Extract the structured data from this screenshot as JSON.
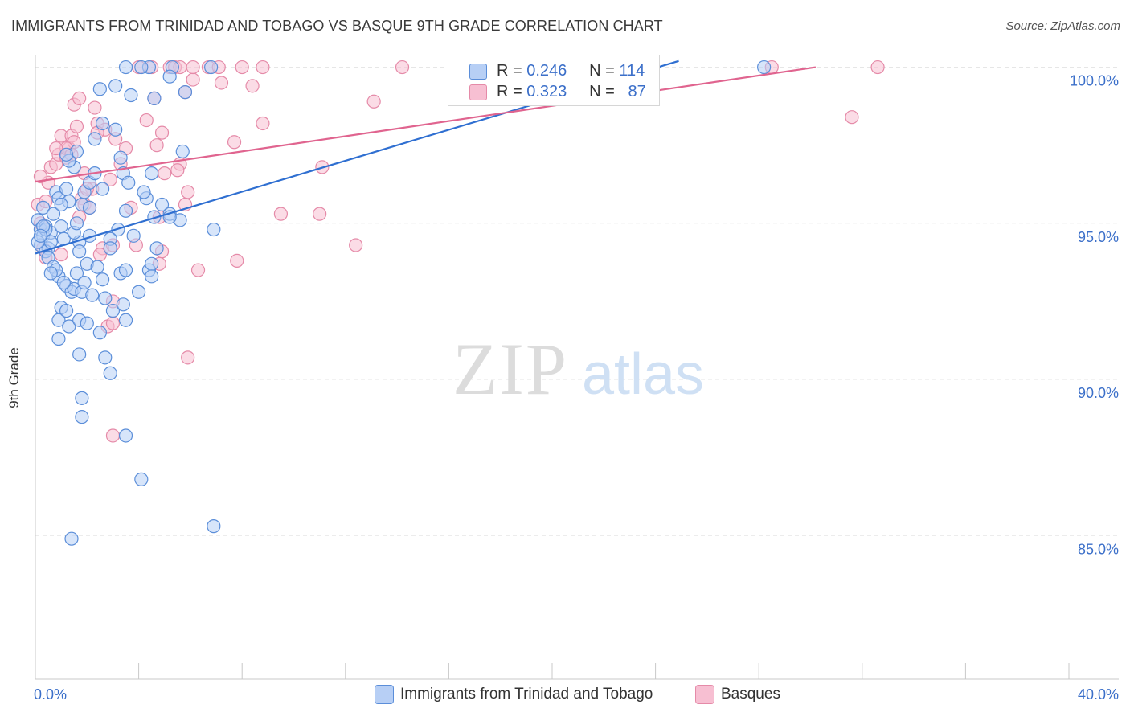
{
  "title": "IMMIGRANTS FROM TRINIDAD AND TOBAGO VS BASQUE 9TH GRADE CORRELATION CHART",
  "source": "Source: ZipAtlas.com",
  "watermark": {
    "zip": "ZIP",
    "atlas": "atlas"
  },
  "legend": {
    "r_label": "R =",
    "n_label": "N =",
    "series": [
      {
        "r": "0.246",
        "n": "114"
      },
      {
        "r": "0.323",
        "n": "87"
      }
    ]
  },
  "bottom_legend": [
    {
      "label": "Immigrants from Trinidad and Tobago"
    },
    {
      "label": "Basques"
    }
  ],
  "colors": {
    "blue_fill": "#b7cff5",
    "blue_stroke": "#5b8ed9",
    "blue_line": "#2f6fd1",
    "pink_fill": "#f7bfd2",
    "pink_stroke": "#e58aa8",
    "pink_line": "#e0648f",
    "tick_text": "#3b6fc9",
    "grid": "#e6e6e6"
  },
  "chart_data": {
    "type": "scatter",
    "title": "IMMIGRANTS FROM TRINIDAD AND TOBAGO VS BASQUE 9TH GRADE CORRELATION CHART",
    "xlabel": "",
    "ylabel": "9th Grade",
    "xlim": [
      0,
      40
    ],
    "ylim": [
      80.4,
      100.4
    ],
    "x_tick_labels": [
      "0.0%",
      "40.0%"
    ],
    "y_ticks": [
      85,
      90,
      95,
      100
    ],
    "y_tick_labels": [
      "85.0%",
      "90.0%",
      "95.0%",
      "100.0%"
    ],
    "series": [
      {
        "name": "Immigrants from Trinidad and Tobago",
        "color": "blue",
        "trend": {
          "x": [
            0,
            24.9
          ],
          "y": [
            94.03,
            100.2
          ]
        },
        "points": [
          [
            0.1,
            95.1
          ],
          [
            0.2,
            94.8
          ],
          [
            0.3,
            94.6
          ],
          [
            0.2,
            94.3
          ],
          [
            0.4,
            94.9
          ],
          [
            0.3,
            95.5
          ],
          [
            0.5,
            94.2
          ],
          [
            0.6,
            94.7
          ],
          [
            0.4,
            94.1
          ],
          [
            0.1,
            94.4
          ],
          [
            0.7,
            95.3
          ],
          [
            0.8,
            96.0
          ],
          [
            0.9,
            95.8
          ],
          [
            1.0,
            94.9
          ],
          [
            1.1,
            94.5
          ],
          [
            0.5,
            93.9
          ],
          [
            0.7,
            93.6
          ],
          [
            0.9,
            93.3
          ],
          [
            1.2,
            93.0
          ],
          [
            1.4,
            92.8
          ],
          [
            1.0,
            92.3
          ],
          [
            0.9,
            91.9
          ],
          [
            0.9,
            91.3
          ],
          [
            1.3,
            91.7
          ],
          [
            1.2,
            92.2
          ],
          [
            1.5,
            92.9
          ],
          [
            1.6,
            93.4
          ],
          [
            1.8,
            92.8
          ],
          [
            1.9,
            93.1
          ],
          [
            2.0,
            93.7
          ],
          [
            1.7,
            94.4
          ],
          [
            1.5,
            94.7
          ],
          [
            1.6,
            95.0
          ],
          [
            1.8,
            95.6
          ],
          [
            1.3,
            95.7
          ],
          [
            1.9,
            96.0
          ],
          [
            2.1,
            96.3
          ],
          [
            2.3,
            96.6
          ],
          [
            2.6,
            96.1
          ],
          [
            1.5,
            96.8
          ],
          [
            1.6,
            97.3
          ],
          [
            1.3,
            97.0
          ],
          [
            1.2,
            97.2
          ],
          [
            2.3,
            97.7
          ],
          [
            2.6,
            98.2
          ],
          [
            3.1,
            98.0
          ],
          [
            3.3,
            97.1
          ],
          [
            3.4,
            96.6
          ],
          [
            3.6,
            96.3
          ],
          [
            3.5,
            95.4
          ],
          [
            3.2,
            94.8
          ],
          [
            2.9,
            94.5
          ],
          [
            2.1,
            94.6
          ],
          [
            1.7,
            94.1
          ],
          [
            2.4,
            93.6
          ],
          [
            2.6,
            93.2
          ],
          [
            2.2,
            92.7
          ],
          [
            2.7,
            92.6
          ],
          [
            3.0,
            92.2
          ],
          [
            3.4,
            92.4
          ],
          [
            1.7,
            91.9
          ],
          [
            2.0,
            91.8
          ],
          [
            2.5,
            91.5
          ],
          [
            3.5,
            91.9
          ],
          [
            3.3,
            93.4
          ],
          [
            3.5,
            93.5
          ],
          [
            4.0,
            92.8
          ],
          [
            4.4,
            93.5
          ],
          [
            4.5,
            93.7
          ],
          [
            4.5,
            93.3
          ],
          [
            4.7,
            94.2
          ],
          [
            4.6,
            95.2
          ],
          [
            4.3,
            95.8
          ],
          [
            4.2,
            96.0
          ],
          [
            4.9,
            95.6
          ],
          [
            5.2,
            95.3
          ],
          [
            5.6,
            95.1
          ],
          [
            5.7,
            97.3
          ],
          [
            4.5,
            96.6
          ],
          [
            4.6,
            99.0
          ],
          [
            5.8,
            99.2
          ],
          [
            4.4,
            100.0
          ],
          [
            5.3,
            100.0
          ],
          [
            6.8,
            100.0
          ],
          [
            3.5,
            100.0
          ],
          [
            4.1,
            100.0
          ],
          [
            3.7,
            99.1
          ],
          [
            3.1,
            99.4
          ],
          [
            2.5,
            99.3
          ],
          [
            5.2,
            99.7
          ],
          [
            0.4,
            94.8
          ],
          [
            0.6,
            94.4
          ],
          [
            0.3,
            94.9
          ],
          [
            0.8,
            93.5
          ],
          [
            1.1,
            93.1
          ],
          [
            1.7,
            90.8
          ],
          [
            2.7,
            90.7
          ],
          [
            2.9,
            90.2
          ],
          [
            1.8,
            88.8
          ],
          [
            1.8,
            89.4
          ],
          [
            3.5,
            88.2
          ],
          [
            4.1,
            86.8
          ],
          [
            6.9,
            85.3
          ],
          [
            1.4,
            84.9
          ],
          [
            5.2,
            95.2
          ],
          [
            6.9,
            94.8
          ],
          [
            3.8,
            94.6
          ],
          [
            2.1,
            95.5
          ],
          [
            1.0,
            95.6
          ],
          [
            0.2,
            94.6
          ],
          [
            0.6,
            93.4
          ],
          [
            2.9,
            94.2
          ],
          [
            28.2,
            100.0
          ],
          [
            1.2,
            96.1
          ]
        ]
      },
      {
        "name": "Basques",
        "color": "pink",
        "trend": {
          "x": [
            0,
            30.2
          ],
          "y": [
            96.33,
            100.0
          ]
        },
        "points": [
          [
            0.1,
            95.6
          ],
          [
            0.2,
            95.0
          ],
          [
            0.3,
            94.2
          ],
          [
            0.4,
            93.9
          ],
          [
            0.5,
            96.3
          ],
          [
            0.6,
            96.8
          ],
          [
            0.8,
            96.9
          ],
          [
            0.9,
            97.2
          ],
          [
            1.0,
            97.8
          ],
          [
            1.2,
            97.1
          ],
          [
            1.3,
            97.4
          ],
          [
            1.4,
            97.8
          ],
          [
            1.5,
            97.6
          ],
          [
            1.6,
            98.1
          ],
          [
            1.2,
            97.4
          ],
          [
            1.5,
            98.8
          ],
          [
            1.7,
            99.0
          ],
          [
            2.3,
            98.7
          ],
          [
            2.4,
            98.2
          ],
          [
            2.7,
            98.0
          ],
          [
            2.4,
            97.9
          ],
          [
            3.1,
            97.7
          ],
          [
            3.3,
            96.9
          ],
          [
            1.9,
            96.6
          ],
          [
            2.2,
            96.1
          ],
          [
            1.8,
            95.8
          ],
          [
            1.9,
            95.6
          ],
          [
            2.1,
            95.5
          ],
          [
            1.7,
            95.2
          ],
          [
            2.6,
            94.2
          ],
          [
            2.5,
            94.0
          ],
          [
            3.0,
            94.3
          ],
          [
            3.9,
            94.3
          ],
          [
            4.9,
            94.1
          ],
          [
            4.8,
            93.7
          ],
          [
            6.3,
            93.5
          ],
          [
            7.8,
            93.8
          ],
          [
            3.0,
            92.5
          ],
          [
            2.8,
            91.7
          ],
          [
            3.0,
            91.8
          ],
          [
            5.9,
            90.7
          ],
          [
            3.0,
            88.2
          ],
          [
            5.6,
            96.9
          ],
          [
            5.0,
            96.6
          ],
          [
            5.9,
            96.0
          ],
          [
            5.8,
            95.6
          ],
          [
            4.8,
            95.2
          ],
          [
            4.7,
            97.5
          ],
          [
            4.9,
            97.9
          ],
          [
            4.3,
            98.3
          ],
          [
            4.6,
            99.0
          ],
          [
            5.8,
            99.2
          ],
          [
            6.1,
            99.6
          ],
          [
            4.0,
            100.0
          ],
          [
            4.5,
            100.0
          ],
          [
            5.2,
            100.0
          ],
          [
            5.4,
            100.0
          ],
          [
            5.6,
            100.0
          ],
          [
            6.1,
            100.0
          ],
          [
            6.7,
            100.0
          ],
          [
            7.1,
            100.0
          ],
          [
            8.0,
            100.0
          ],
          [
            8.8,
            100.0
          ],
          [
            14.2,
            100.0
          ],
          [
            20.8,
            100.0
          ],
          [
            32.6,
            100.0
          ],
          [
            7.2,
            99.5
          ],
          [
            8.4,
            99.4
          ],
          [
            8.8,
            98.2
          ],
          [
            7.7,
            97.6
          ],
          [
            13.1,
            98.9
          ],
          [
            11.1,
            96.8
          ],
          [
            9.5,
            95.3
          ],
          [
            11.0,
            95.3
          ],
          [
            12.4,
            94.3
          ],
          [
            28.5,
            100.0
          ],
          [
            31.6,
            98.4
          ],
          [
            0.2,
            96.5
          ],
          [
            0.8,
            97.4
          ],
          [
            1.4,
            97.2
          ],
          [
            2.0,
            96.1
          ],
          [
            2.9,
            96.4
          ],
          [
            3.5,
            97.4
          ],
          [
            0.4,
            95.7
          ],
          [
            3.7,
            95.5
          ],
          [
            5.5,
            96.7
          ],
          [
            1.0,
            94.0
          ]
        ]
      }
    ]
  }
}
